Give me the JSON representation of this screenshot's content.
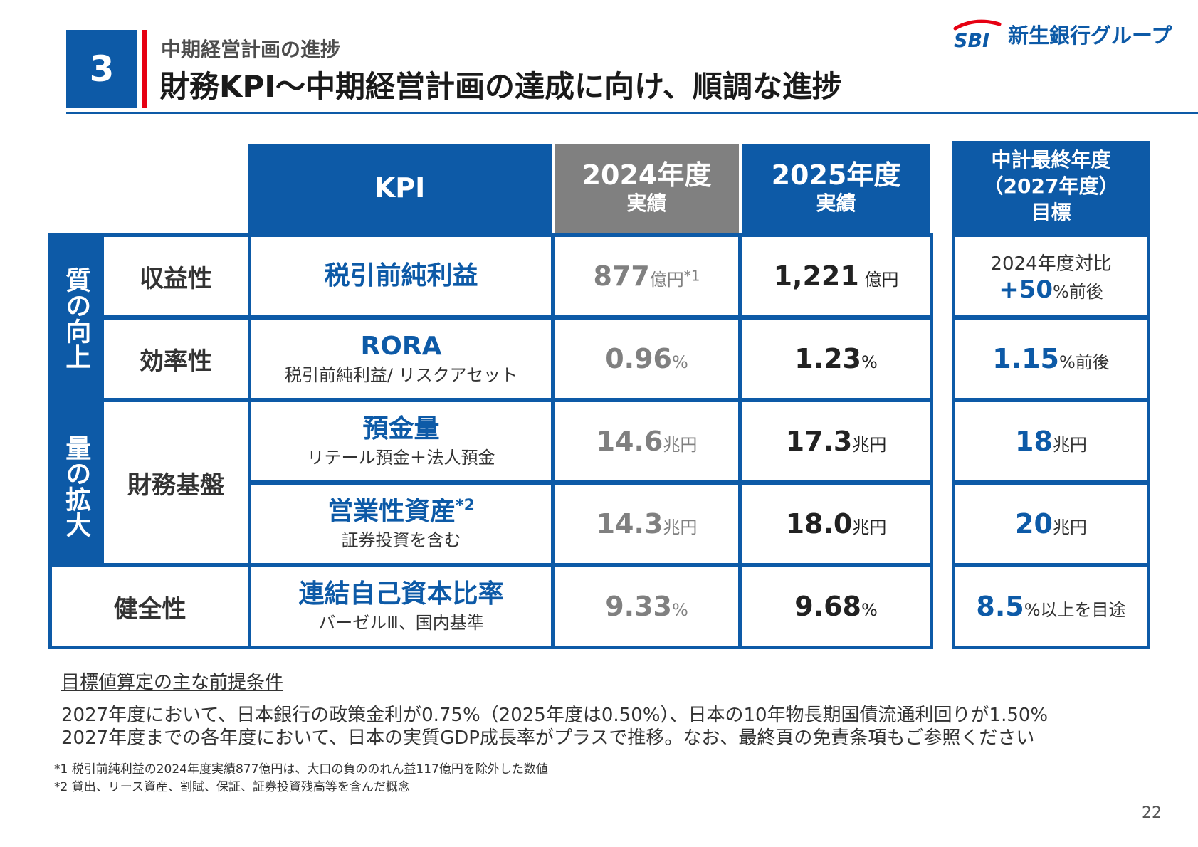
{
  "header": {
    "section_number": "3",
    "subtitle": "中期経営計画の進捗",
    "title": "財務KPI～中期経営計画の達成に向け、順調な進捗",
    "logo_mark": "SBI",
    "logo_text": "新生銀行グループ"
  },
  "table": {
    "headers": {
      "kpi": "KPI",
      "fy2024_year": "2024年度",
      "fy2024_sub": "実績",
      "fy2025_year": "2025年度",
      "fy2025_sub": "実績",
      "target_line1": "中計最終年度",
      "target_line2": "（2027年度）",
      "target_line3": "目標"
    },
    "groups": {
      "quality": "質の向上",
      "quantity": "量の拡大"
    },
    "rows": [
      {
        "category": "収益性",
        "kpi": "税引前純利益",
        "fy2024": "877",
        "fy2024_unit": "億円",
        "fy2024_note": "*1",
        "fy2025": "1,221",
        "fy2025_unit": " 億円",
        "target_line1": "2024年度対比",
        "target": "+50",
        "target_unit": "%前後"
      },
      {
        "category": "効率性",
        "kpi": "RORA",
        "kpi_sub": "税引前純利益/ リスクアセット",
        "fy2024": "0.96",
        "fy2024_unit": "%",
        "fy2025": "1.23",
        "fy2025_unit": "%",
        "target": "1.15",
        "target_unit": "%前後"
      },
      {
        "category": "財務基盤",
        "kpi": "預金量",
        "kpi_sub": "リテール預金＋法人預金",
        "fy2024": "14.6",
        "fy2024_unit": "兆円",
        "fy2025": "17.3",
        "fy2025_unit": "兆円",
        "target": "18",
        "target_unit": "兆円"
      },
      {
        "kpi": "営業性資産",
        "kpi_note": "*2",
        "kpi_sub": "証券投資を含む",
        "fy2024": "14.3",
        "fy2024_unit": "兆円",
        "fy2025": "18.0",
        "fy2025_unit": "兆円",
        "target": "20",
        "target_unit": "兆円"
      },
      {
        "category": "健全性",
        "kpi": "連結自己資本比率",
        "kpi_sub": "バーゼルⅢ、国内基準",
        "fy2024": "9.33",
        "fy2024_unit": "%",
        "fy2025": "9.68",
        "fy2025_unit": "%",
        "target": "8.5",
        "target_unit": "%以上を目途"
      }
    ]
  },
  "assumptions": {
    "heading": "目標値算定の主な前提条件",
    "line1": "2027年度において、日本銀行の政策金利が0.75%（2025年度は0.50%）、日本の10年物長期国債流通利回りが1.50%",
    "line2": "2027年度までの各年度において、日本の実質GDP成長率がプラスで推移。なお、最終頁の免責条項もご参照ください"
  },
  "footnotes": {
    "note1": "*1 税引前純利益の2024年度実績877億円は、大口の負ののれん益117億円を除外した数値",
    "note2": "*2 貸出、リース資産、割賦、保証、証券投資残高等を含んだ概念"
  },
  "page_number": "22",
  "colors": {
    "primary_blue": "#0d5aa7",
    "accent_red": "#e60012",
    "gray": "#808080"
  }
}
